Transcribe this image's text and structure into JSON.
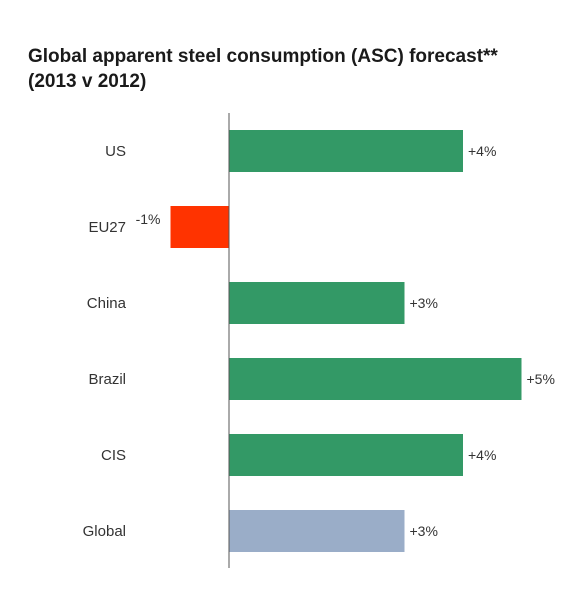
{
  "chart_data": {
    "type": "bar",
    "orientation": "horizontal",
    "title": "Global apparent steel consumption (ASC) forecast** (2013 v 2012)",
    "title_lines": [
      "Global apparent steel consumption (ASC) forecast**",
      "(2013 v 2012)"
    ],
    "categories": [
      "US",
      "EU27",
      "China",
      "Brazil",
      "CIS",
      "Global"
    ],
    "values": [
      4,
      -1,
      3,
      5,
      4,
      3
    ],
    "value_labels": [
      "+4%",
      "-1%",
      "+3%",
      "+5%",
      "+4%",
      "+3%"
    ],
    "bar_colors": [
      "#339966",
      "#ff3300",
      "#339966",
      "#339966",
      "#339966",
      "#9aadc8"
    ],
    "xlim": [
      -1,
      5
    ],
    "grid": false,
    "legend": "none"
  }
}
